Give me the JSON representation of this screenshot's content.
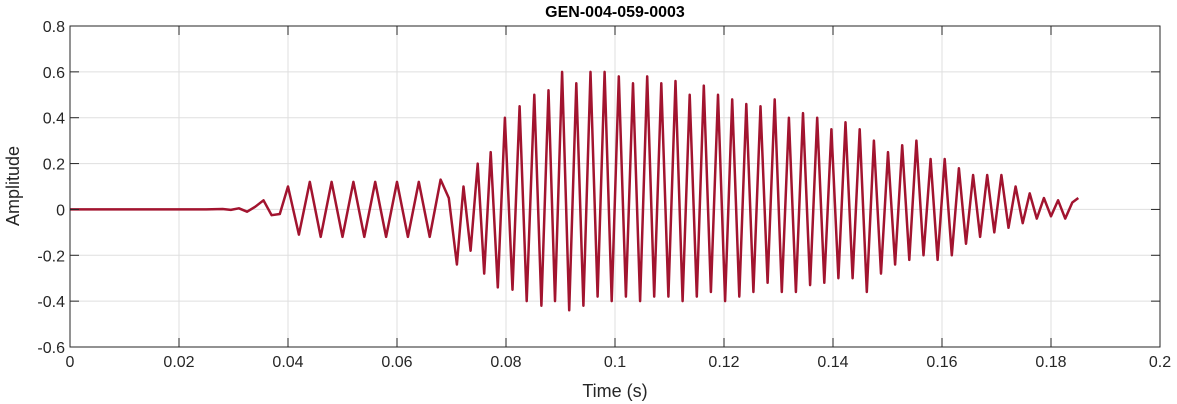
{
  "chart_data": {
    "type": "line",
    "title": "GEN-004-059-0003",
    "xlabel": "Time (s)",
    "ylabel": "Amplitude",
    "xlim": [
      0,
      0.2
    ],
    "ylim": [
      -0.6,
      0.8
    ],
    "xticks": [
      0,
      0.02,
      0.04,
      0.06,
      0.08,
      0.1,
      0.12,
      0.14,
      0.16,
      0.18,
      0.2
    ],
    "xtick_labels": [
      "0",
      "0.02",
      "0.04",
      "0.06",
      "0.08",
      "0.1",
      "0.12",
      "0.14",
      "0.16",
      "0.18",
      "0.2"
    ],
    "yticks": [
      -0.6,
      -0.4,
      -0.2,
      0,
      0.2,
      0.4,
      0.6,
      0.8
    ],
    "ytick_labels": [
      "-0.6",
      "-0.4",
      "-0.2",
      "0",
      "0.2",
      "0.4",
      "0.6",
      "0.8"
    ],
    "grid": true,
    "series": [
      {
        "color": "#A2142F",
        "points": [
          [
            0,
            0
          ],
          [
            0.005,
            0
          ],
          [
            0.01,
            0
          ],
          [
            0.015,
            0
          ],
          [
            0.02,
            0
          ],
          [
            0.025,
            0
          ],
          [
            0.028,
            0.002
          ],
          [
            0.0295,
            -0.002
          ],
          [
            0.031,
            0.005
          ],
          [
            0.0325,
            -0.01
          ],
          [
            0.034,
            0.012
          ],
          [
            0.0355,
            0.04
          ],
          [
            0.037,
            -0.025
          ],
          [
            0.0385,
            -0.02
          ],
          [
            0.04,
            0.1
          ],
          [
            0.042,
            -0.11
          ],
          [
            0.044,
            0.12
          ],
          [
            0.046,
            -0.12
          ],
          [
            0.048,
            0.12
          ],
          [
            0.05,
            -0.12
          ],
          [
            0.052,
            0.12
          ],
          [
            0.054,
            -0.12
          ],
          [
            0.056,
            0.12
          ],
          [
            0.058,
            -0.12
          ],
          [
            0.06,
            0.12
          ],
          [
            0.062,
            -0.12
          ],
          [
            0.064,
            0.12
          ],
          [
            0.066,
            -0.12
          ],
          [
            0.068,
            0.13
          ],
          [
            0.0695,
            0.05
          ],
          [
            0.071,
            -0.24
          ],
          [
            0.0722,
            0.1
          ],
          [
            0.0735,
            -0.18
          ],
          [
            0.0748,
            0.2
          ],
          [
            0.076,
            -0.28
          ],
          [
            0.0772,
            0.25
          ],
          [
            0.0785,
            -0.34
          ],
          [
            0.0798,
            0.4
          ],
          [
            0.0812,
            -0.35
          ],
          [
            0.0825,
            0.45
          ],
          [
            0.0838,
            -0.4
          ],
          [
            0.0852,
            0.5
          ],
          [
            0.0865,
            -0.42
          ],
          [
            0.0878,
            0.52
          ],
          [
            0.089,
            -0.4
          ],
          [
            0.0903,
            0.6
          ],
          [
            0.0916,
            -0.44
          ],
          [
            0.0929,
            0.55
          ],
          [
            0.0942,
            -0.42
          ],
          [
            0.0955,
            0.6
          ],
          [
            0.0968,
            -0.38
          ],
          [
            0.0981,
            0.6
          ],
          [
            0.0994,
            -0.4
          ],
          [
            0.1007,
            0.58
          ],
          [
            0.102,
            -0.38
          ],
          [
            0.1033,
            0.55
          ],
          [
            0.1046,
            -0.4
          ],
          [
            0.1059,
            0.58
          ],
          [
            0.1072,
            -0.38
          ],
          [
            0.1085,
            0.55
          ],
          [
            0.1098,
            -0.38
          ],
          [
            0.1111,
            0.56
          ],
          [
            0.1124,
            -0.4
          ],
          [
            0.1137,
            0.5
          ],
          [
            0.115,
            -0.38
          ],
          [
            0.1163,
            0.54
          ],
          [
            0.1176,
            -0.36
          ],
          [
            0.1189,
            0.5
          ],
          [
            0.1202,
            -0.4
          ],
          [
            0.1215,
            0.48
          ],
          [
            0.1228,
            -0.38
          ],
          [
            0.1241,
            0.46
          ],
          [
            0.1254,
            -0.36
          ],
          [
            0.1267,
            0.45
          ],
          [
            0.128,
            -0.32
          ],
          [
            0.1293,
            0.48
          ],
          [
            0.1306,
            -0.36
          ],
          [
            0.1319,
            0.4
          ],
          [
            0.1332,
            -0.36
          ],
          [
            0.1345,
            0.42
          ],
          [
            0.1358,
            -0.33
          ],
          [
            0.1371,
            0.4
          ],
          [
            0.1384,
            -0.32
          ],
          [
            0.1397,
            0.35
          ],
          [
            0.141,
            -0.3
          ],
          [
            0.1423,
            0.38
          ],
          [
            0.1436,
            -0.3
          ],
          [
            0.1449,
            0.35
          ],
          [
            0.1462,
            -0.36
          ],
          [
            0.1475,
            0.3
          ],
          [
            0.1488,
            -0.28
          ],
          [
            0.1501,
            0.25
          ],
          [
            0.1514,
            -0.24
          ],
          [
            0.1527,
            0.28
          ],
          [
            0.154,
            -0.22
          ],
          [
            0.1553,
            0.3
          ],
          [
            0.1566,
            -0.2
          ],
          [
            0.1579,
            0.22
          ],
          [
            0.1592,
            -0.22
          ],
          [
            0.1605,
            0.22
          ],
          [
            0.1618,
            -0.2
          ],
          [
            0.1631,
            0.18
          ],
          [
            0.1644,
            -0.15
          ],
          [
            0.1657,
            0.15
          ],
          [
            0.167,
            -0.12
          ],
          [
            0.1683,
            0.15
          ],
          [
            0.1696,
            -0.1
          ],
          [
            0.1709,
            0.15
          ],
          [
            0.1722,
            -0.08
          ],
          [
            0.1735,
            0.1
          ],
          [
            0.1748,
            -0.06
          ],
          [
            0.1761,
            0.07
          ],
          [
            0.1774,
            -0.04
          ],
          [
            0.1787,
            0.05
          ],
          [
            0.18,
            -0.03
          ],
          [
            0.1813,
            0.04
          ],
          [
            0.1826,
            -0.04
          ],
          [
            0.1839,
            0.03
          ],
          [
            0.185,
            0.05
          ]
        ]
      }
    ]
  }
}
